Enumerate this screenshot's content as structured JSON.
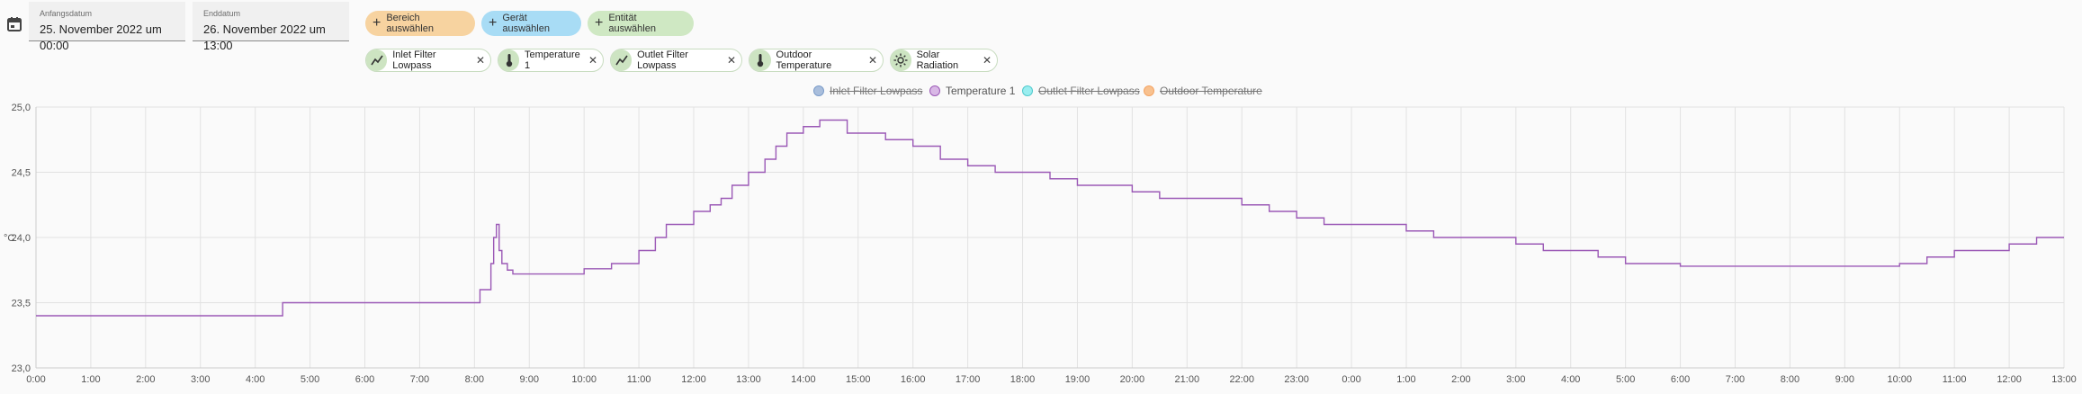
{
  "date_range": {
    "start_label": "Anfangsdatum",
    "start_value": "25. November 2022 um 00:00",
    "end_label": "Enddatum",
    "end_value": "26. November 2022 um 13:00"
  },
  "target_buttons": [
    {
      "label": "Bereich auswählen",
      "color": "#f7d3a0"
    },
    {
      "label": "Gerät auswählen",
      "color": "#a8dcf5"
    },
    {
      "label": "Entität auswählen",
      "color": "#cfe8c3"
    }
  ],
  "entity_chips": [
    {
      "label": "Inlet Filter Lowpass",
      "icon": "chart-line-icon"
    },
    {
      "label": "Temperature 1",
      "icon": "thermometer-icon"
    },
    {
      "label": "Outlet Filter Lowpass",
      "icon": "chart-line-icon"
    },
    {
      "label": "Outdoor Temperature",
      "icon": "thermometer-icon"
    },
    {
      "label": "Solar Radiation",
      "icon": "sun-icon"
    }
  ],
  "chart_data": {
    "type": "line",
    "ylabel": "°C",
    "ylim": [
      23.0,
      25.0
    ],
    "y_ticks": [
      "23,0",
      "23,5",
      "24,0",
      "24,5",
      "25,0"
    ],
    "x_ticks": [
      "0:00",
      "1:00",
      "2:00",
      "3:00",
      "4:00",
      "5:00",
      "6:00",
      "7:00",
      "8:00",
      "9:00",
      "10:00",
      "11:00",
      "12:00",
      "13:00",
      "14:00",
      "15:00",
      "16:00",
      "17:00",
      "18:00",
      "19:00",
      "20:00",
      "21:00",
      "22:00",
      "23:00",
      "0:00",
      "1:00",
      "2:00",
      "3:00",
      "4:00",
      "5:00",
      "6:00",
      "7:00",
      "8:00",
      "9:00",
      "10:00",
      "11:00",
      "12:00",
      "13:00"
    ],
    "grid": true,
    "legend_position": "top-center",
    "series": [
      {
        "name": "Inlet Filter Lowpass",
        "color": "#7b9cc9",
        "hidden": true,
        "values": []
      },
      {
        "name": "Temperature 1",
        "color": "#9b59b6",
        "hidden": false,
        "x_hours": [
          0,
          0.5,
          1,
          1.5,
          2,
          2.5,
          3,
          3.5,
          4,
          4.5,
          5,
          5.5,
          6,
          6.5,
          7,
          7.5,
          8,
          8.1,
          8.2,
          8.3,
          8.35,
          8.4,
          8.45,
          8.5,
          8.6,
          8.7,
          9,
          9.5,
          10,
          10.5,
          11,
          11.3,
          11.5,
          12,
          12.3,
          12.5,
          12.7,
          13,
          13.3,
          13.5,
          13.7,
          14,
          14.3,
          14.5,
          14.8,
          15,
          15.5,
          16,
          16.5,
          17,
          17.5,
          18,
          18.5,
          19,
          19.5,
          20,
          20.5,
          21,
          21.5,
          22,
          22.5,
          23,
          23.5,
          24,
          24.5,
          25,
          25.5,
          26,
          26.5,
          27,
          27.5,
          28,
          28.5,
          29,
          29.5,
          30,
          30.5,
          31,
          31.5,
          32,
          32.5,
          33,
          33.5,
          34,
          34.5,
          35,
          35.5,
          36,
          36.5,
          37
        ],
        "values": [
          23.4,
          23.4,
          23.4,
          23.4,
          23.4,
          23.4,
          23.4,
          23.4,
          23.4,
          23.5,
          23.5,
          23.5,
          23.5,
          23.5,
          23.5,
          23.5,
          23.5,
          23.6,
          23.6,
          23.8,
          24.0,
          24.1,
          23.9,
          23.8,
          23.75,
          23.72,
          23.72,
          23.72,
          23.76,
          23.8,
          23.9,
          24.0,
          24.1,
          24.2,
          24.25,
          24.3,
          24.4,
          24.5,
          24.6,
          24.7,
          24.8,
          24.85,
          24.9,
          24.9,
          24.8,
          24.8,
          24.75,
          24.7,
          24.6,
          24.55,
          24.5,
          24.5,
          24.45,
          24.4,
          24.4,
          24.35,
          24.3,
          24.3,
          24.3,
          24.25,
          24.2,
          24.15,
          24.1,
          24.1,
          24.1,
          24.05,
          24.0,
          24.0,
          24.0,
          23.95,
          23.9,
          23.9,
          23.85,
          23.8,
          23.8,
          23.78,
          23.78,
          23.78,
          23.78,
          23.78,
          23.78,
          23.78,
          23.78,
          23.8,
          23.85,
          23.9,
          23.9,
          23.95,
          24.0,
          24.0
        ]
      },
      {
        "name": "Outlet Filter Lowpass",
        "color": "#6fdde0",
        "hidden": true,
        "values": []
      },
      {
        "name": "Outdoor Temperature",
        "color": "#f4a463",
        "hidden": true,
        "values": []
      }
    ]
  }
}
